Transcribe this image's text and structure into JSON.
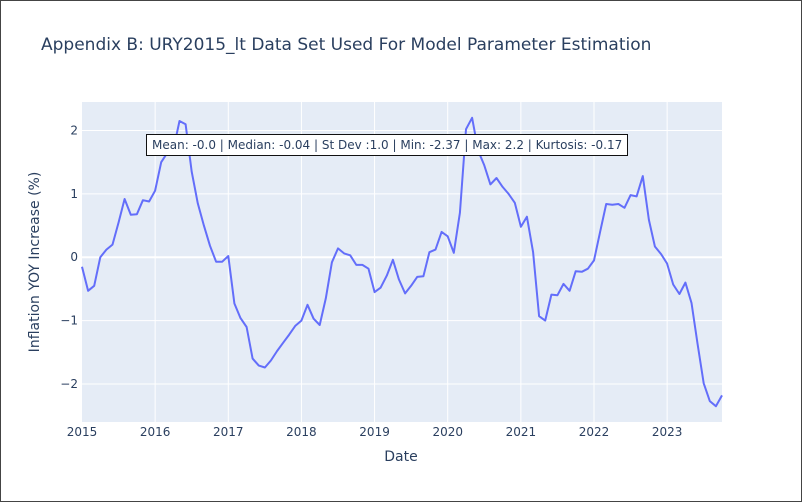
{
  "chart_data": {
    "type": "line",
    "title": "Appendix B: URY2015_lt Data Set Used For Model Parameter Estimation",
    "xlabel": "Date",
    "ylabel": "Inflation YOY Increase (%)",
    "x_tick_labels": [
      "2015",
      "2016",
      "2017",
      "2018",
      "2019",
      "2020",
      "2021",
      "2022",
      "2023"
    ],
    "y_tick_labels": [
      "−2",
      "−1",
      "0",
      "1",
      "2"
    ],
    "y_tick_values": [
      -2,
      -1,
      0,
      1,
      2
    ],
    "xlim": [
      2015.0,
      2023.75
    ],
    "ylim": [
      -2.6,
      2.45
    ],
    "grid": true,
    "line_color": "#636efa",
    "plot_bg": "#e5ecf6",
    "annotation": "Mean: -0.0 | Median: -0.04 | St Dev :1.0 | Min: -2.37 | Max: 2.2 | Kurtosis: -0.17",
    "series": [
      {
        "x": [
          2015.0,
          2015.083,
          2015.167,
          2015.25,
          2015.333,
          2015.417,
          2015.5,
          2015.583,
          2015.667,
          2015.75,
          2015.833,
          2015.917,
          2016.0,
          2016.083,
          2016.167,
          2016.25,
          2016.333,
          2016.417,
          2016.5,
          2016.583,
          2016.667,
          2016.75,
          2016.833,
          2016.917,
          2017.0,
          2017.083,
          2017.167,
          2017.25,
          2017.333,
          2017.417,
          2017.5,
          2017.583,
          2017.667,
          2017.75,
          2017.833,
          2017.917,
          2018.0,
          2018.083,
          2018.167,
          2018.25,
          2018.333,
          2018.417,
          2018.5,
          2018.583,
          2018.667,
          2018.75,
          2018.833,
          2018.917,
          2019.0,
          2019.083,
          2019.167,
          2019.25,
          2019.333,
          2019.417,
          2019.5,
          2019.583,
          2019.667,
          2019.75,
          2019.833,
          2019.917,
          2020.0,
          2020.083,
          2020.167,
          2020.25,
          2020.333,
          2020.417,
          2020.5,
          2020.583,
          2020.667,
          2020.75,
          2020.833,
          2020.917,
          2021.0,
          2021.083,
          2021.167,
          2021.25,
          2021.333,
          2021.417,
          2021.5,
          2021.583,
          2021.667,
          2021.75,
          2021.833,
          2021.917,
          2022.0,
          2022.083,
          2022.167,
          2022.25,
          2022.333,
          2022.417,
          2022.5,
          2022.583,
          2022.667,
          2022.75,
          2022.833,
          2022.917,
          2023.0,
          2023.083,
          2023.167,
          2023.25,
          2023.333,
          2023.417,
          2023.5,
          2023.583,
          2023.667,
          2023.75
        ],
        "y": [
          -0.15,
          -0.53,
          -0.45,
          0.0,
          0.12,
          0.2,
          0.55,
          0.92,
          0.67,
          0.68,
          0.9,
          0.88,
          1.05,
          1.5,
          1.65,
          1.7,
          2.15,
          2.1,
          1.35,
          0.85,
          0.5,
          0.18,
          -0.07,
          -0.07,
          0.02,
          -0.73,
          -0.96,
          -1.1,
          -1.6,
          -1.71,
          -1.74,
          -1.63,
          -1.48,
          -1.35,
          -1.22,
          -1.08,
          -1.0,
          -0.75,
          -0.97,
          -1.07,
          -0.65,
          -0.08,
          0.14,
          0.06,
          0.03,
          -0.12,
          -0.12,
          -0.18,
          -0.55,
          -0.48,
          -0.29,
          -0.04,
          -0.35,
          -0.57,
          -0.45,
          -0.31,
          -0.3,
          0.08,
          0.12,
          0.4,
          0.33,
          0.07,
          0.7,
          2.02,
          2.2,
          1.68,
          1.45,
          1.15,
          1.25,
          1.11,
          1.0,
          0.86,
          0.48,
          0.64,
          0.08,
          -0.93,
          -1.0,
          -0.59,
          -0.6,
          -0.42,
          -0.53,
          -0.22,
          -0.23,
          -0.18,
          -0.05,
          0.4,
          0.84,
          0.83,
          0.84,
          0.78,
          0.98,
          0.96,
          1.28,
          0.59,
          0.17,
          0.05,
          -0.1,
          -0.43,
          -0.58,
          -0.4,
          -0.72,
          -1.37,
          -1.99,
          -2.27,
          -2.35,
          -2.18
        ]
      }
    ]
  }
}
